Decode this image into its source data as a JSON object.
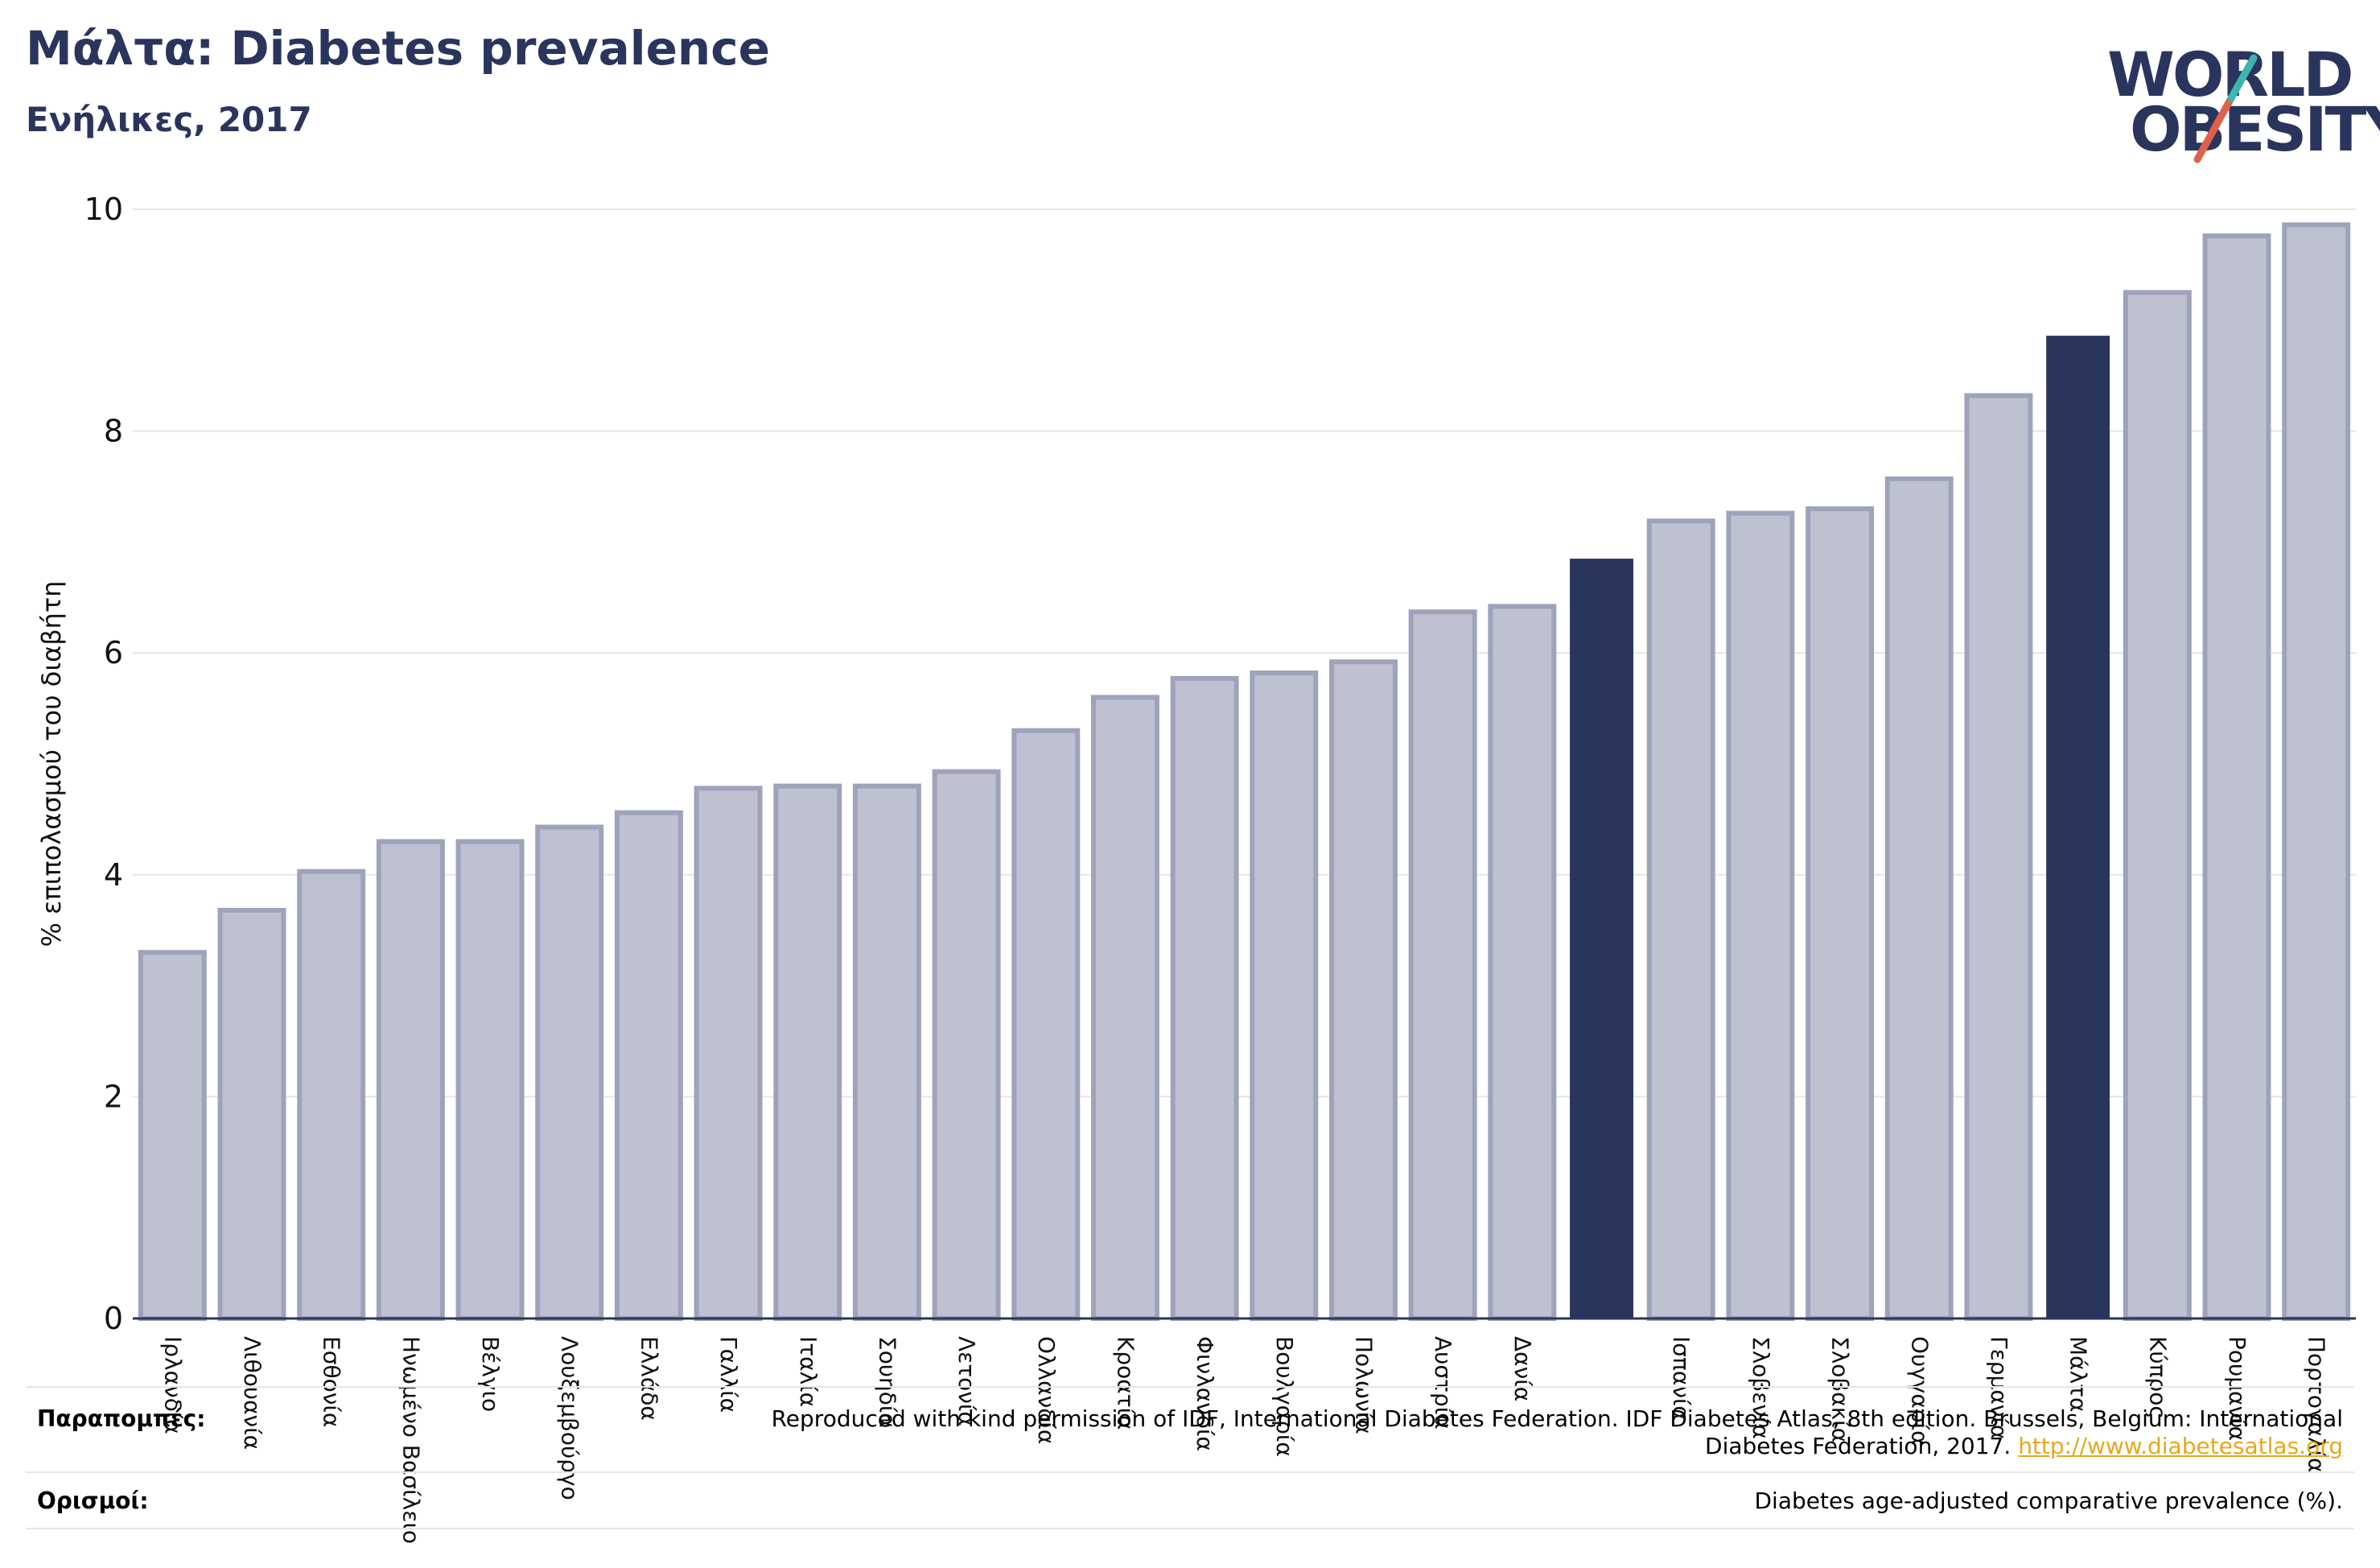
{
  "header": {
    "title": "Μάλτα: Diabetes prevalence",
    "subtitle": "Ενήλικες, 2017"
  },
  "logo": {
    "line1": "WORLD",
    "line2": "OBESITY",
    "colors": [
      "#2a355e",
      "#3ab5b0",
      "#e0614a"
    ]
  },
  "chart_data": {
    "type": "bar",
    "ylabel": "% επιπολασμού του διαβήτη",
    "xlabel": "",
    "ylim": [
      0,
      10
    ],
    "yticks": [
      0,
      2,
      4,
      6,
      8,
      10
    ],
    "grid": true,
    "categories": [
      "Ιρλανδία",
      "Λιθουανία",
      "Εσθονία",
      "Ηνωμένο Βασίλειο",
      "Βέλγιο",
      "Λουξεμβούργο",
      "Ελλάδα",
      "Γαλλία",
      "Ιταλία",
      "Σουηδία",
      "Λετονία",
      "Ολλανδία",
      "Κροατία",
      "Φινλανδία",
      "Βουλγαρία",
      "Πολωνία",
      "Αυστρία",
      "Δανία",
      "",
      "Ισπανία",
      "Σλοβενία",
      "Σλοβακία",
      "Ουγγαρία",
      "Γερμανία",
      "Μάλτα",
      "Κύπρος",
      "Ρουμανία",
      "Πορτογαλία"
    ],
    "values": [
      3.3,
      3.68,
      4.03,
      4.3,
      4.3,
      4.43,
      4.56,
      4.78,
      4.8,
      4.8,
      4.93,
      5.3,
      5.6,
      5.77,
      5.82,
      5.92,
      6.37,
      6.42,
      6.85,
      7.19,
      7.26,
      7.3,
      7.57,
      8.32,
      8.86,
      9.25,
      9.76,
      9.86
    ],
    "highlight": [
      18,
      24
    ],
    "colors": {
      "bar": "#bec1cf",
      "bar_edge": "#9ea3bb",
      "highlight": "#2a355e"
    }
  },
  "footer": {
    "references_label": "Παραπομπές:",
    "references_text_1": "Reproduced with kind permission of IDF, International Diabetes Federation. IDF Diabetes Atlas, 8th edition. Brussels, Belgium: International",
    "references_text_2": "Diabetes Federation, 2017.",
    "references_link": "http://www.diabetesatlas.org",
    "definitions_label": "Ορισμοί:",
    "definitions_text": "Diabetes age-adjusted comparative prevalence (%)."
  }
}
